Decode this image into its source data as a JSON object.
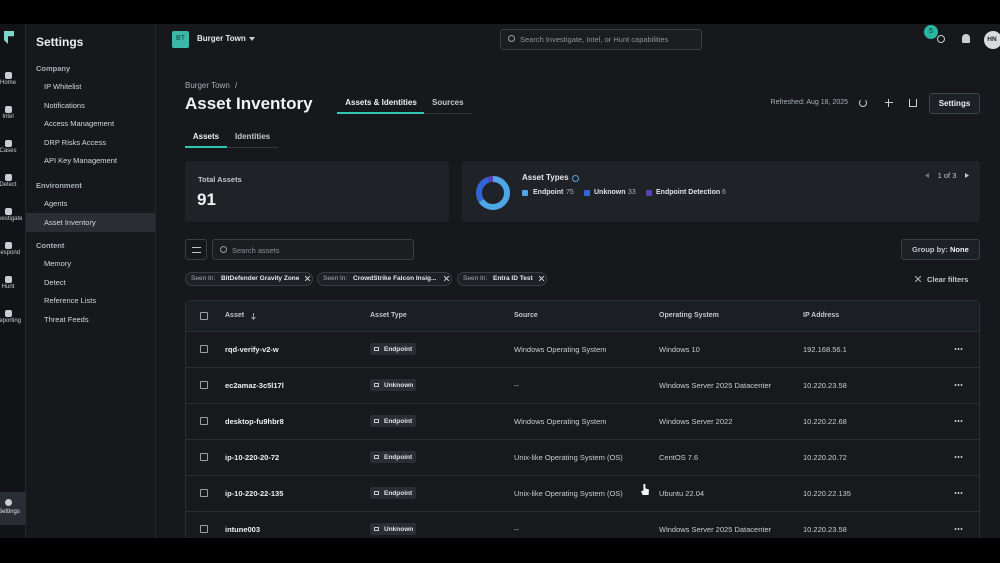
{
  "rail": {
    "items": [
      "Home",
      "Intel",
      "Cases",
      "Detect",
      "Investigate",
      "Respond",
      "Hunt",
      "Reporting"
    ],
    "bottom": "Settings"
  },
  "sidebar": {
    "title": "Settings",
    "sections": [
      {
        "heading": "Company",
        "items": [
          "IP Whitelist",
          "Notifications",
          "Access Management",
          "DRP Risks Access",
          "API Key Management"
        ]
      },
      {
        "heading": "Environment",
        "items": [
          "Agents",
          "Asset Inventory"
        ]
      },
      {
        "heading": "Content",
        "items": [
          "Memory",
          "Detect",
          "Reference Lists",
          "Threat Feeds"
        ]
      }
    ]
  },
  "topbar": {
    "org_badge": "BT",
    "org_name": "Burger Town",
    "search_placeholder": "Search Investigate, Intel, or Hunt capabilities",
    "notification_count": 5,
    "avatar": "HN"
  },
  "header": {
    "breadcrumb": "Burger Town",
    "breadcrumb_separator": "/",
    "title": "Asset Inventory",
    "tabs": [
      "Assets & Identities",
      "Sources"
    ],
    "refreshed": "Refreshed: Aug 18, 2025",
    "settings_button": "Settings"
  },
  "subtabs": [
    "Assets",
    "Identities"
  ],
  "total_assets": {
    "label": "Total Assets",
    "value": 91
  },
  "asset_types": {
    "title": "Asset Types",
    "legend": [
      {
        "name": "Endpoint",
        "count": 75,
        "color": "#4ea6e6"
      },
      {
        "name": "Unknown",
        "count": 33,
        "color": "#3463d6"
      },
      {
        "name": "Endpoint Detection",
        "count": 6,
        "color": "#5b3fb5"
      }
    ],
    "pager": "1 of 3"
  },
  "toolbar": {
    "search_placeholder": "Search assets",
    "group_by_label": "Group by:",
    "group_by_value": "None"
  },
  "filters": [
    {
      "label": "Seen In:",
      "value": "BitDefender Gravity Zone"
    },
    {
      "label": "Seen In:",
      "value": "CrowdStrike Falcon Insig..."
    },
    {
      "label": "Seen In:",
      "value": "Entra ID Test"
    }
  ],
  "clear_filters": "Clear filters",
  "table": {
    "columns": [
      "Asset",
      "Asset Type",
      "Source",
      "Operating System",
      "IP Address"
    ],
    "rows": [
      [
        "rqd-verify-v2-w",
        "Endpoint",
        "Windows Operating System",
        "Windows 10",
        "192.168.56.1"
      ],
      [
        "ec2amaz-3c5l17l",
        "Unknown",
        "--",
        "Windows Server 2025 Datacenter",
        "10.220.23.58"
      ],
      [
        "desktop-fu9hbr8",
        "Endpoint",
        "Windows Operating System",
        "Windows Server 2022",
        "10.220.22.68"
      ],
      [
        "ip-10-220-20-72",
        "Endpoint",
        "Unix-like Operating System (OS)",
        "CentOS 7.6",
        "10.220.20.72"
      ],
      [
        "ip-10-220-22-135",
        "Endpoint",
        "Unix-like Operating System (OS)",
        "Ubuntu 22.04",
        "10.220.22.135"
      ],
      [
        "intune003",
        "Unknown",
        "--",
        "Windows Server 2025 Datacenter",
        "10.220.23.58"
      ]
    ]
  }
}
